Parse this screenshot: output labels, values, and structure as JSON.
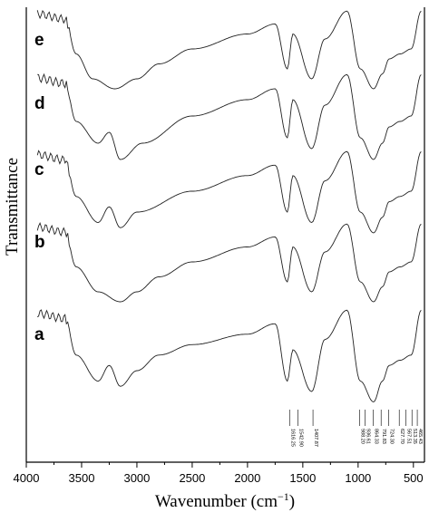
{
  "chart_data": {
    "type": "line",
    "xlabel_main": "Wavenumber (cm",
    "xlabel_sup": "−1",
    "xlabel_close": ")",
    "ylabel": "Transmittance",
    "xlim": [
      4000,
      400
    ],
    "x_reversed": true,
    "x_ticks": [
      4000,
      3500,
      3000,
      2500,
      2000,
      1500,
      1000,
      500
    ],
    "grid": false,
    "series": [
      {
        "name": "e",
        "values": [
          [
            3900,
            0.95
          ],
          [
            3650,
            0.9
          ],
          [
            3550,
            0.55
          ],
          [
            3400,
            0.3
          ],
          [
            3200,
            0.2
          ],
          [
            3000,
            0.3
          ],
          [
            2800,
            0.45
          ],
          [
            2500,
            0.6
          ],
          [
            2000,
            0.75
          ],
          [
            1750,
            0.85
          ],
          [
            1640,
            0.4
          ],
          [
            1590,
            0.75
          ],
          [
            1420,
            0.3
          ],
          [
            1300,
            0.7
          ],
          [
            1100,
            0.98
          ],
          [
            980,
            0.4
          ],
          [
            860,
            0.2
          ],
          [
            780,
            0.35
          ],
          [
            720,
            0.5
          ],
          [
            620,
            0.55
          ],
          [
            520,
            0.6
          ],
          [
            430,
            0.98
          ]
        ]
      },
      {
        "name": "d",
        "values": [
          [
            3900,
            0.95
          ],
          [
            3650,
            0.9
          ],
          [
            3550,
            0.55
          ],
          [
            3350,
            0.35
          ],
          [
            3250,
            0.45
          ],
          [
            3150,
            0.2
          ],
          [
            2950,
            0.35
          ],
          [
            2500,
            0.6
          ],
          [
            2000,
            0.75
          ],
          [
            1750,
            0.85
          ],
          [
            1640,
            0.4
          ],
          [
            1590,
            0.75
          ],
          [
            1420,
            0.3
          ],
          [
            1300,
            0.7
          ],
          [
            1100,
            0.98
          ],
          [
            980,
            0.4
          ],
          [
            860,
            0.2
          ],
          [
            780,
            0.35
          ],
          [
            720,
            0.5
          ],
          [
            620,
            0.55
          ],
          [
            520,
            0.6
          ],
          [
            430,
            0.98
          ]
        ]
      },
      {
        "name": "c",
        "values": [
          [
            3900,
            0.95
          ],
          [
            3650,
            0.9
          ],
          [
            3550,
            0.55
          ],
          [
            3350,
            0.3
          ],
          [
            3250,
            0.45
          ],
          [
            3150,
            0.25
          ],
          [
            3000,
            0.4
          ],
          [
            2500,
            0.6
          ],
          [
            2000,
            0.75
          ],
          [
            1750,
            0.85
          ],
          [
            1640,
            0.4
          ],
          [
            1590,
            0.75
          ],
          [
            1420,
            0.3
          ],
          [
            1300,
            0.7
          ],
          [
            1100,
            0.98
          ],
          [
            980,
            0.4
          ],
          [
            860,
            0.2
          ],
          [
            780,
            0.35
          ],
          [
            720,
            0.5
          ],
          [
            620,
            0.55
          ],
          [
            520,
            0.6
          ],
          [
            430,
            0.98
          ]
        ]
      },
      {
        "name": "b",
        "values": [
          [
            3900,
            0.95
          ],
          [
            3650,
            0.9
          ],
          [
            3550,
            0.55
          ],
          [
            3350,
            0.3
          ],
          [
            3150,
            0.2
          ],
          [
            3000,
            0.3
          ],
          [
            2800,
            0.45
          ],
          [
            2500,
            0.6
          ],
          [
            2000,
            0.75
          ],
          [
            1750,
            0.85
          ],
          [
            1640,
            0.4
          ],
          [
            1590,
            0.75
          ],
          [
            1420,
            0.3
          ],
          [
            1300,
            0.7
          ],
          [
            1100,
            0.98
          ],
          [
            980,
            0.4
          ],
          [
            860,
            0.2
          ],
          [
            780,
            0.35
          ],
          [
            720,
            0.5
          ],
          [
            620,
            0.55
          ],
          [
            520,
            0.6
          ],
          [
            430,
            0.98
          ]
        ]
      },
      {
        "name": "a",
        "values": [
          [
            3900,
            0.95
          ],
          [
            3650,
            0.9
          ],
          [
            3550,
            0.55
          ],
          [
            3350,
            0.3
          ],
          [
            3250,
            0.45
          ],
          [
            3150,
            0.25
          ],
          [
            3000,
            0.4
          ],
          [
            2800,
            0.55
          ],
          [
            2500,
            0.65
          ],
          [
            2000,
            0.75
          ],
          [
            1750,
            0.85
          ],
          [
            1640,
            0.3
          ],
          [
            1590,
            0.6
          ],
          [
            1420,
            0.2
          ],
          [
            1300,
            0.7
          ],
          [
            1100,
            0.98
          ],
          [
            980,
            0.3
          ],
          [
            860,
            0.1
          ],
          [
            780,
            0.3
          ],
          [
            720,
            0.45
          ],
          [
            620,
            0.5
          ],
          [
            520,
            0.55
          ],
          [
            430,
            0.98
          ]
        ]
      }
    ],
    "peak_annotations": [
      {
        "x": 1616,
        "label": "1616.25"
      },
      {
        "x": 1543,
        "label": "1542.90"
      },
      {
        "x": 1408,
        "label": "1407.87"
      },
      {
        "x": 988,
        "label": "988.20"
      },
      {
        "x": 936,
        "label": "936.61"
      },
      {
        "x": 864,
        "label": "864.33"
      },
      {
        "x": 792,
        "label": "791.83"
      },
      {
        "x": 724,
        "label": "724.30"
      },
      {
        "x": 628,
        "label": "627.70"
      },
      {
        "x": 568,
        "label": "567.51"
      },
      {
        "x": 513,
        "label": "513.35"
      },
      {
        "x": 465,
        "label": "465.43"
      }
    ]
  }
}
